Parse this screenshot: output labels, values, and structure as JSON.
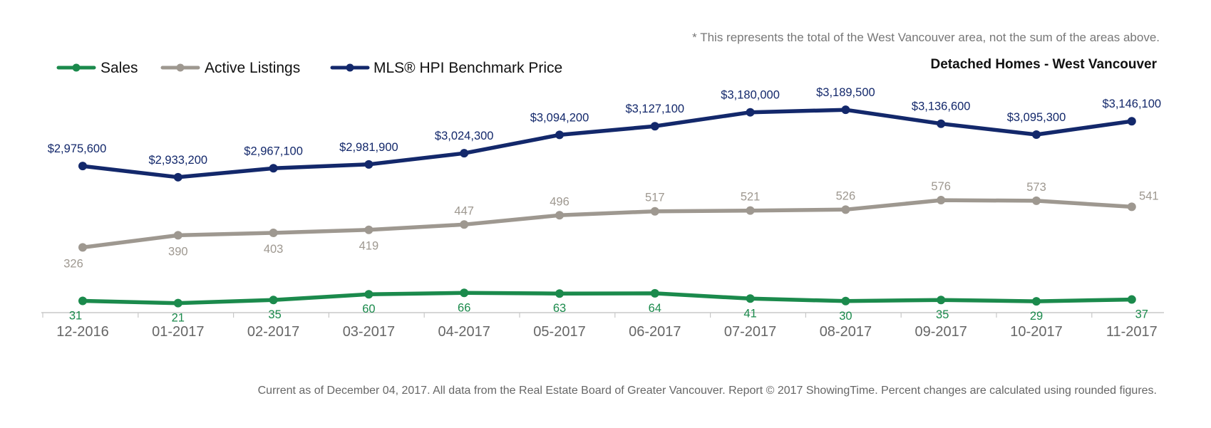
{
  "chart_data": {
    "type": "line",
    "title": "Detached Homes - West Vancouver",
    "note": "* This represents the total of the West Vancouver area, not the sum of the areas above.",
    "footer": "Current as of December 04, 2017. All data from the Real Estate Board of Greater Vancouver. Report © 2017 ShowingTime. Percent changes are calculated using rounded figures.",
    "categories": [
      "12-2016",
      "01-2017",
      "02-2017",
      "03-2017",
      "04-2017",
      "05-2017",
      "06-2017",
      "07-2017",
      "08-2017",
      "09-2017",
      "10-2017",
      "11-2017"
    ],
    "legend_position": "top-left",
    "grid": false,
    "series": [
      {
        "name": "Sales",
        "color": "#1b8a4c",
        "values": [
          31,
          21,
          35,
          60,
          66,
          63,
          64,
          41,
          30,
          35,
          29,
          37
        ],
        "labels": [
          "31",
          "21",
          "35",
          "60",
          "66",
          "63",
          "64",
          "41",
          "30",
          "35",
          "29",
          "37"
        ]
      },
      {
        "name": "Active Listings",
        "color": "#9e9890",
        "values": [
          326,
          390,
          403,
          419,
          447,
          496,
          517,
          521,
          526,
          576,
          573,
          541
        ],
        "labels": [
          "326",
          "390",
          "403",
          "419",
          "447",
          "496",
          "517",
          "521",
          "526",
          "576",
          "573",
          "541"
        ]
      },
      {
        "name": "MLS® HPI Benchmark Price",
        "color": "#13286b",
        "values": [
          2975600,
          2933200,
          2967100,
          2981900,
          3024300,
          3094200,
          3127100,
          3180000,
          3189500,
          3136600,
          3095300,
          3146100
        ],
        "labels": [
          "$2,975,600",
          "$2,933,200",
          "$2,967,100",
          "$2,981,900",
          "$3,024,300",
          "$3,094,200",
          "$3,127,100",
          "$3,180,000",
          "$3,189,500",
          "$3,136,600",
          "$3,095,300",
          "$3,146,100"
        ]
      }
    ]
  }
}
